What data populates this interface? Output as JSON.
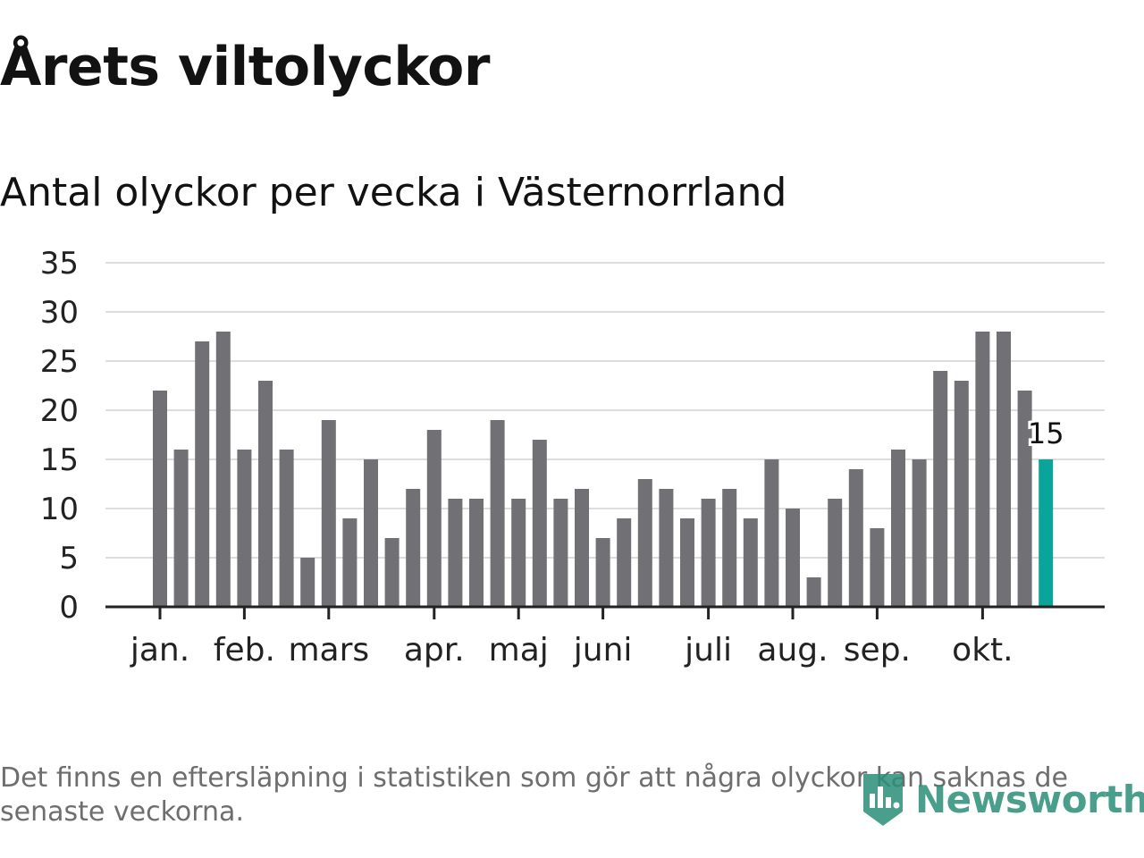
{
  "title": "Årets viltolyckor",
  "subtitle": "Antal olyckor per vecka i Västernorrland",
  "footnote": "Det finns en eftersläpning i statistiken som gör att några olyckor kan saknas de senaste veckorna.",
  "brand": {
    "name": "Newsworthy",
    "icon": "bar-chart-shield-icon",
    "color": "#2a8f77"
  },
  "colors": {
    "bar": "#707075",
    "highlight": "#0aa49a",
    "grid": "#dddddd",
    "axis": "#222222",
    "text": "#121212"
  },
  "chart_data": {
    "type": "bar",
    "title": "Antal olyckor per vecka i Västernorrland",
    "xlabel": "",
    "ylabel": "",
    "ylim": [
      0,
      35
    ],
    "yticks": [
      0,
      5,
      10,
      15,
      20,
      25,
      30,
      35
    ],
    "grid": true,
    "values": [
      22,
      16,
      27,
      28,
      16,
      23,
      16,
      5,
      19,
      9,
      15,
      7,
      12,
      18,
      11,
      11,
      19,
      11,
      17,
      11,
      12,
      7,
      9,
      13,
      12,
      9,
      11,
      12,
      9,
      15,
      10,
      3,
      11,
      14,
      8,
      16,
      15,
      24,
      23,
      28,
      28,
      22,
      15
    ],
    "highlight_index": 42,
    "highlight_label": "15",
    "month_labels": [
      {
        "label": "jan.",
        "at_bar": 0
      },
      {
        "label": "feb.",
        "at_bar": 4
      },
      {
        "label": "mars",
        "at_bar": 8
      },
      {
        "label": "apr.",
        "at_bar": 13
      },
      {
        "label": "maj",
        "at_bar": 17
      },
      {
        "label": "juni",
        "at_bar": 21
      },
      {
        "label": "juli",
        "at_bar": 26
      },
      {
        "label": "aug.",
        "at_bar": 30
      },
      {
        "label": "sep.",
        "at_bar": 34
      },
      {
        "label": "okt.",
        "at_bar": 39
      }
    ]
  }
}
